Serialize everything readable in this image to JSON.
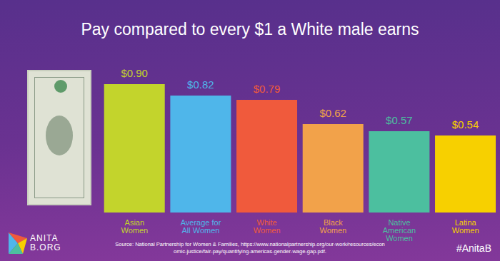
{
  "chart_data": {
    "type": "bar",
    "title": "Pay compared to every $1 a White male earns",
    "categories": [
      "Asian Women",
      "Average for All Women",
      "White Women",
      "Black Women",
      "Native American Women",
      "Latina Women"
    ],
    "values": [
      0.9,
      0.82,
      0.79,
      0.62,
      0.57,
      0.54
    ],
    "value_labels": [
      "$0.90",
      "$0.82",
      "$0.79",
      "$0.62",
      "$0.57",
      "$0.54"
    ],
    "colors": [
      "#c3d42c",
      "#4fb6ea",
      "#f05a3c",
      "#f2a24a",
      "#4cbf9f",
      "#f7d000"
    ],
    "data_labels": true,
    "grid": false,
    "tick_labels": "x",
    "annotations": [
      "Source: National Partnership for Women & Families, https://www.nationalpartnership.org/our-work/resources/economic-justice/fair-pay/quantifying-americas-gender-wage-gap.pdf.",
      "#AnitaB",
      "ANITA",
      "B.ORG"
    ]
  }
}
